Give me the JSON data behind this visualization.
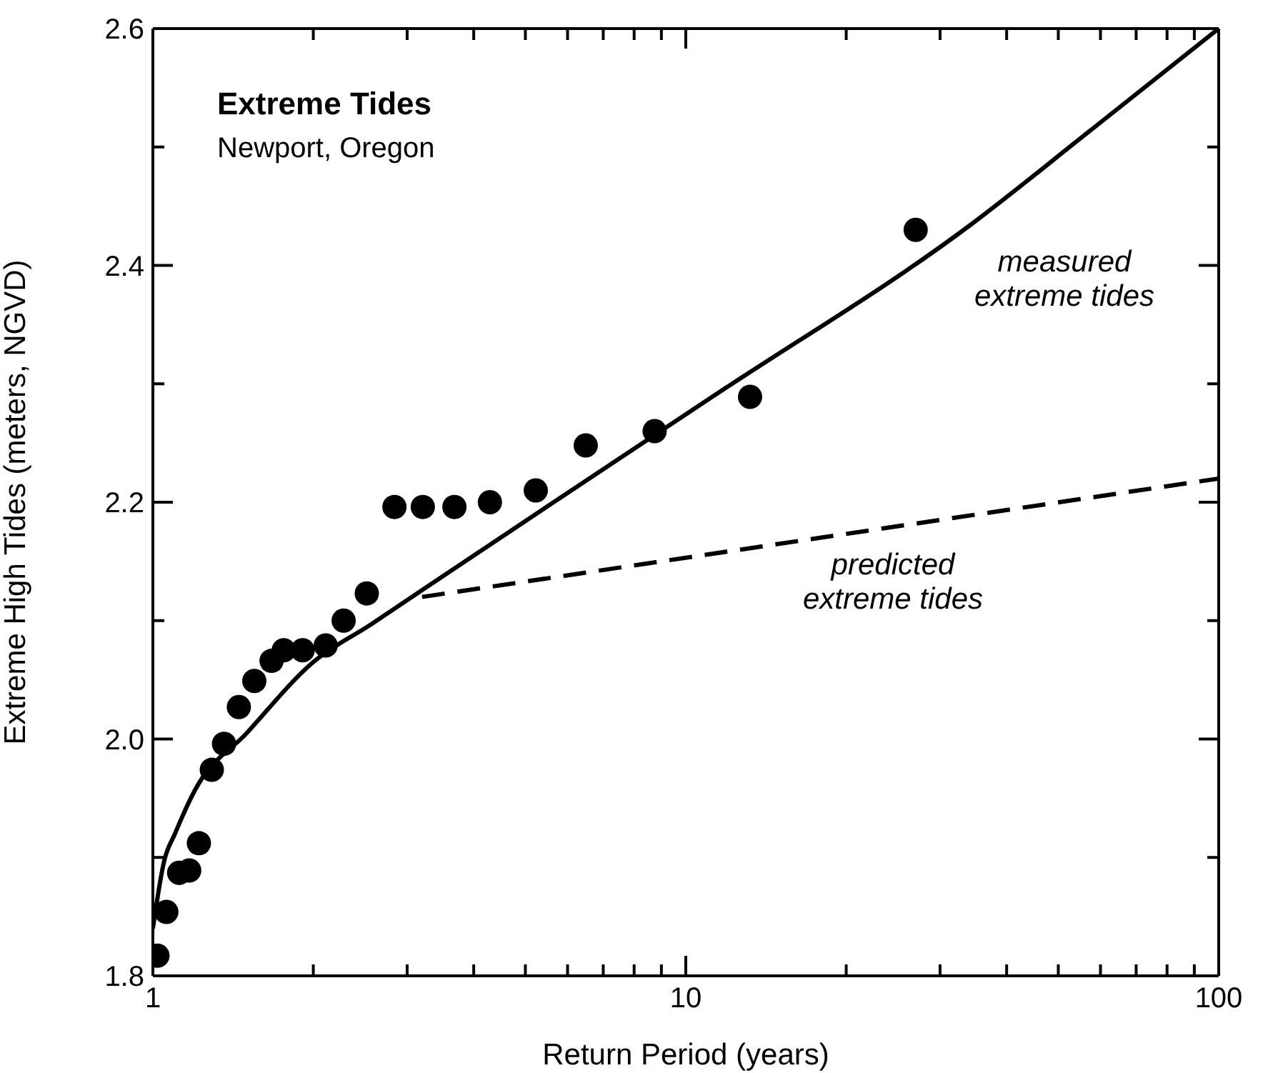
{
  "chart_data": {
    "type": "scatter",
    "title": "Extreme Tides",
    "subtitle": "Newport, Oregon",
    "xlabel": "Return Period (years)",
    "ylabel": "Extreme High Tides (meters, NGVD)",
    "log": "x",
    "grid": false,
    "xlim": [
      1,
      100
    ],
    "xticks": [
      1,
      {
        "value": 2,
        "label": null
      },
      {
        "value": 3,
        "label": null
      },
      {
        "value": 4,
        "label": null
      },
      {
        "value": 5,
        "label": null
      },
      {
        "value": 6,
        "label": null
      },
      {
        "value": 7,
        "label": null
      },
      {
        "value": 8,
        "label": null
      },
      {
        "value": 9,
        "label": null
      },
      10,
      {
        "value": 20,
        "label": null
      },
      {
        "value": 30,
        "label": null
      },
      {
        "value": 40,
        "label": null
      },
      {
        "value": 50,
        "label": null
      },
      {
        "value": 60,
        "label": null
      },
      {
        "value": 70,
        "label": null
      },
      {
        "value": 80,
        "label": null
      },
      {
        "value": 90,
        "label": null
      },
      100
    ],
    "ylim": [
      1.8,
      2.6
    ],
    "yticks": [
      {
        "value": 1.8,
        "label": "1.8"
      },
      {
        "value": 1.9,
        "label": null
      },
      {
        "value": 2.0,
        "label": "2.0"
      },
      {
        "value": 2.1,
        "label": null
      },
      {
        "value": 2.2,
        "label": "2.2"
      },
      {
        "value": 2.3,
        "label": null
      },
      {
        "value": 2.4,
        "label": "2.4"
      },
      {
        "value": 2.5,
        "label": null
      },
      {
        "value": 2.6,
        "label": "2.6"
      }
    ],
    "series": [
      {
        "color": "#000000",
        "marker": "circle",
        "x": [
          1.02,
          1.06,
          1.12,
          1.17,
          1.22,
          1.29,
          1.36,
          1.45,
          1.55,
          1.67,
          1.76,
          1.91,
          2.11,
          2.28,
          2.52,
          2.84,
          3.21,
          3.68,
          4.29,
          5.23,
          6.49,
          8.74,
          13.2,
          27.0
        ],
        "values": [
          1.817,
          1.854,
          1.887,
          1.889,
          1.912,
          1.974,
          1.996,
          2.027,
          2.049,
          2.066,
          2.075,
          2.075,
          2.079,
          2.1,
          2.123,
          2.196,
          2.196,
          2.196,
          2.2,
          2.21,
          2.248,
          2.26,
          2.289,
          2.43
        ]
      },
      {
        "type": "line",
        "color": "#000000",
        "marker": "none",
        "line_style": "solid",
        "x": [
          1,
          1.05,
          1.1,
          1.2,
          1.5,
          2,
          2.57,
          3.23,
          6.1,
          11.3,
          34.4,
          56,
          100
        ],
        "values": [
          1.84,
          1.897,
          1.92,
          1.957,
          2.005,
          2.065,
          2.097,
          2.127,
          2.21,
          2.29,
          2.435,
          2.51,
          2.6
        ]
      },
      {
        "type": "line",
        "color": "#000000",
        "marker": "none",
        "line_style": "dashed",
        "x": [
          3.2,
          100
        ],
        "values": [
          2.12,
          2.22
        ]
      }
    ],
    "annotations": [
      "measured extreme tides",
      "predicted extreme tides"
    ]
  }
}
